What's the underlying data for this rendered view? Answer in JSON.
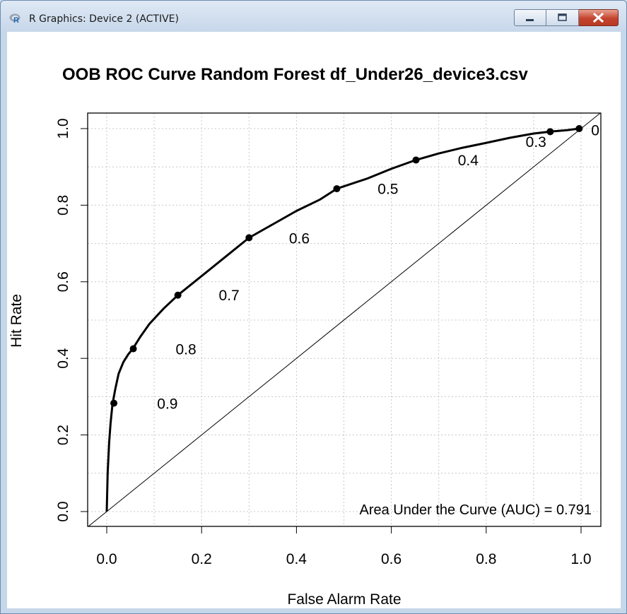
{
  "window": {
    "title": "R Graphics: Device 2 (ACTIVE)",
    "app_icon": "r-logo-icon",
    "controls": [
      "minimize-icon",
      "maximize-icon",
      "close-icon"
    ]
  },
  "chart_data": {
    "type": "line",
    "title": "OOB ROC Curve Random Forest df_Under26_device3.csv",
    "xlabel": "False Alarm Rate",
    "ylabel": "Hit Rate",
    "xlim": [
      0,
      1
    ],
    "ylim": [
      0,
      1
    ],
    "xticks": [
      "0.0",
      "0.2",
      "0.4",
      "0.6",
      "0.8",
      "1.0"
    ],
    "yticks": [
      "0.0",
      "0.2",
      "0.4",
      "0.6",
      "0.8",
      "1.0"
    ],
    "grid": true,
    "reference_line": "diagonal",
    "curve": {
      "x": [
        0,
        0.002,
        0.005,
        0.008,
        0.012,
        0.018,
        0.025,
        0.035,
        0.045,
        0.055,
        0.07,
        0.09,
        0.12,
        0.15,
        0.2,
        0.25,
        0.3,
        0.35,
        0.4,
        0.45,
        0.485,
        0.55,
        0.6,
        0.652,
        0.7,
        0.75,
        0.797,
        0.85,
        0.9,
        0.935,
        0.97,
        0.996
      ],
      "y": [
        0,
        0.1,
        0.18,
        0.23,
        0.28,
        0.32,
        0.36,
        0.39,
        0.41,
        0.425,
        0.455,
        0.49,
        0.53,
        0.565,
        0.615,
        0.665,
        0.715,
        0.75,
        0.785,
        0.815,
        0.843,
        0.87,
        0.895,
        0.918,
        0.935,
        0.95,
        0.962,
        0.976,
        0.987,
        0.992,
        0.996,
        1.0
      ]
    },
    "thresholds": [
      {
        "label": "0.9",
        "x": 0.015,
        "y": 0.283,
        "label_x": 0.128,
        "label_y": 0.281
      },
      {
        "label": "0.8",
        "x": 0.056,
        "y": 0.425,
        "label_x": 0.167,
        "label_y": 0.423
      },
      {
        "label": "0.7",
        "x": 0.15,
        "y": 0.565,
        "label_x": 0.258,
        "label_y": 0.565
      },
      {
        "label": "0.6",
        "x": 0.3,
        "y": 0.715,
        "label_x": 0.406,
        "label_y": 0.713
      },
      {
        "label": "0.5",
        "x": 0.485,
        "y": 0.843,
        "label_x": 0.593,
        "label_y": 0.842
      },
      {
        "label": "0.4",
        "x": 0.652,
        "y": 0.918,
        "label_x": 0.762,
        "label_y": 0.917
      },
      {
        "label": "0.3",
        "x": 0.935,
        "y": 0.992,
        "label_x": 0.905,
        "label_y": 0.965
      },
      {
        "label": "0",
        "x": 0.996,
        "y": 1.0,
        "label_x": 1.03,
        "label_y": 0.995
      }
    ],
    "annotations": [
      "Area Under the Curve (AUC) = 0.791"
    ]
  }
}
